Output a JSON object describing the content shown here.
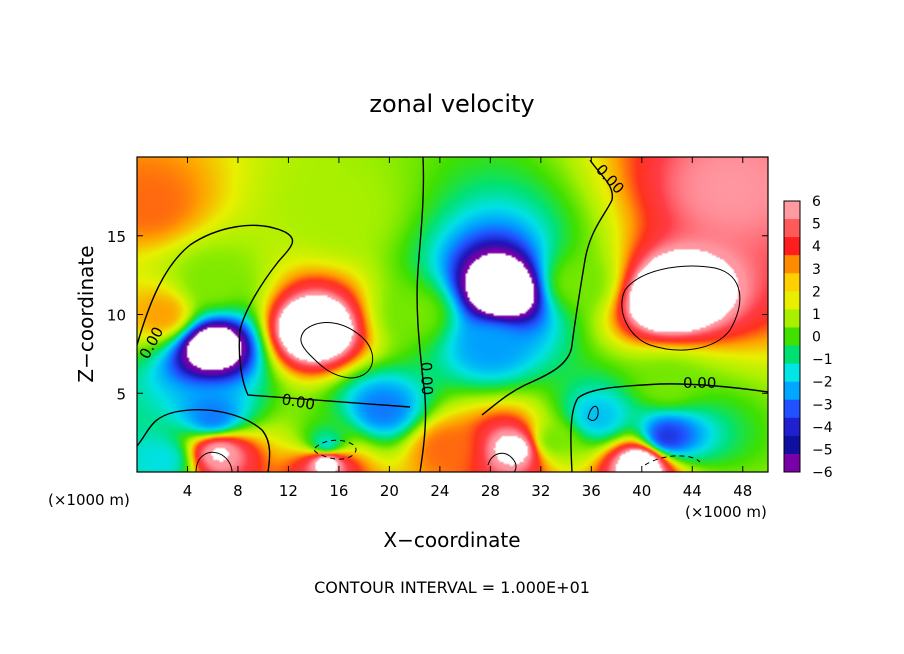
{
  "chart_data": {
    "type": "heatmap",
    "title": "zonal velocity",
    "xlabel": "X−coordinate",
    "ylabel": "Z−coordinate",
    "x_unit": "(×1000 m)",
    "x_unit_right": "(×1000 m)",
    "x_ticks": [
      4,
      8,
      12,
      16,
      20,
      24,
      28,
      32,
      36,
      40,
      44,
      48
    ],
    "y_ticks": [
      5,
      10,
      15
    ],
    "xlim": [
      0,
      50
    ],
    "ylim": [
      0,
      20
    ],
    "colorbar": {
      "ticks": [
        6,
        5,
        4,
        3,
        2,
        1,
        0,
        -1,
        -2,
        -3,
        -4,
        -5,
        -6
      ],
      "tick_labels": [
        "6",
        "5",
        "4",
        "3",
        "2",
        "1",
        "0",
        "−1",
        "−2",
        "−3",
        "−4",
        "−5",
        "−6"
      ],
      "colors": [
        "#ff9aa0",
        "#ff5a5a",
        "#ff1e1e",
        "#ff8c00",
        "#ffd000",
        "#e8f000",
        "#a8f000",
        "#40e000",
        "#00e070",
        "#00e6e6",
        "#00a6ff",
        "#2050ff",
        "#2020d0",
        "#1010a0",
        "#7a00a8"
      ]
    },
    "field_anomalies": [
      {
        "x": 22,
        "z": 10,
        "value": 0.5
      },
      {
        "x": 35,
        "z": 12,
        "value": 0.5
      },
      {
        "x": 33,
        "z": 2.0,
        "value": 0.5
      },
      {
        "x": 16,
        "z": 16.5,
        "value": 1.0
      },
      {
        "x": 6,
        "z": 12.0,
        "value": 0.6
      },
      {
        "x": 6,
        "z": 8.0,
        "value": -8.0
      },
      {
        "x": 6,
        "z": 3.5,
        "value": -3.5
      },
      {
        "x": 6.5,
        "z": 1.2,
        "value": 6.5
      },
      {
        "x": 2,
        "z": 10,
        "value": 3.0
      },
      {
        "x": 1,
        "z": 17,
        "value": 3.5
      },
      {
        "x": 2,
        "z": 0.8,
        "value": -2.0
      },
      {
        "x": 14,
        "z": 9.0,
        "value": 9.0
      },
      {
        "x": 15,
        "z": 1.6,
        "value": -2.5
      },
      {
        "x": 15,
        "z": 0.8,
        "value": 8.0
      },
      {
        "x": 19.5,
        "z": 4.0,
        "value": -3.5
      },
      {
        "x": 29,
        "z": 11.5,
        "value": -9.0
      },
      {
        "x": 28,
        "z": 8.0,
        "value": -3.0
      },
      {
        "x": 30,
        "z": 1.5,
        "value": 7.0
      },
      {
        "x": 24.5,
        "z": 1.5,
        "value": 3.5
      },
      {
        "x": 42,
        "z": 11.0,
        "value": 9.0
      },
      {
        "x": 47,
        "z": 18.0,
        "value": 6.0
      },
      {
        "x": 42,
        "z": 5.5,
        "value": 0.5
      },
      {
        "x": 42,
        "z": 2.2,
        "value": -4.5
      },
      {
        "x": 40,
        "z": 0.6,
        "value": 8.0
      },
      {
        "x": 36.5,
        "z": 3.5,
        "value": -2.5
      }
    ],
    "contour_label": "0.00",
    "contour_interval_text": "CONTOUR INTERVAL = 1.000E+01"
  }
}
